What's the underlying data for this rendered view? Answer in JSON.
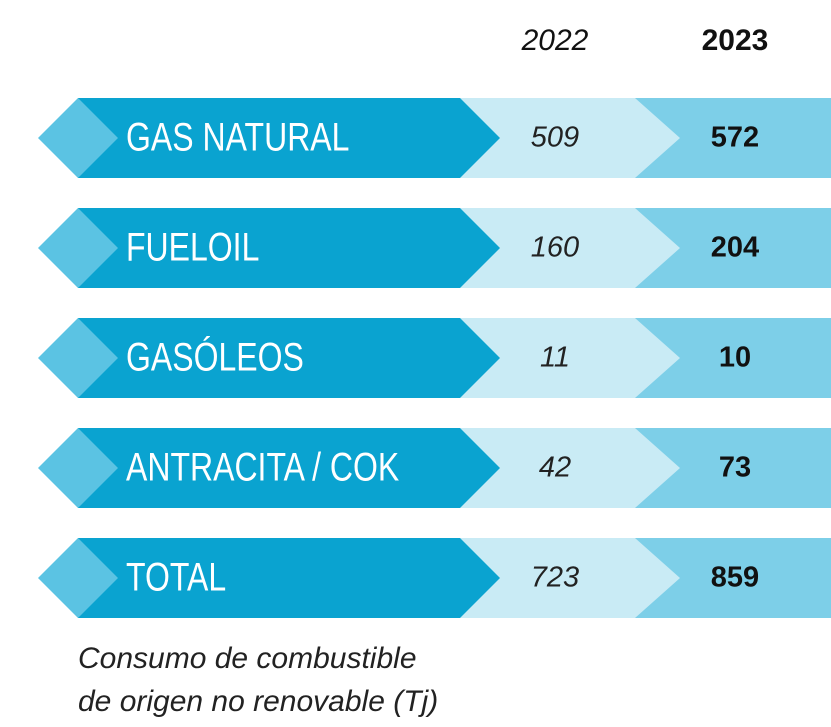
{
  "header": {
    "col1": "2022",
    "col2": "2023"
  },
  "rows": [
    {
      "label": "GAS NATURAL",
      "v2022": 509,
      "v2023": 572
    },
    {
      "label": "FUELOIL",
      "v2022": 160,
      "v2023": 204
    },
    {
      "label": "GASÓLEOS",
      "v2022": 11,
      "v2023": 10
    },
    {
      "label": "ANTRACITA / COK",
      "v2022": 42,
      "v2023": 73
    },
    {
      "label": "TOTAL",
      "v2022": 723,
      "v2023": 859
    }
  ],
  "caption": {
    "line1": "Consumo de combustible",
    "line2": "de origen no renovable (Tj)"
  }
}
